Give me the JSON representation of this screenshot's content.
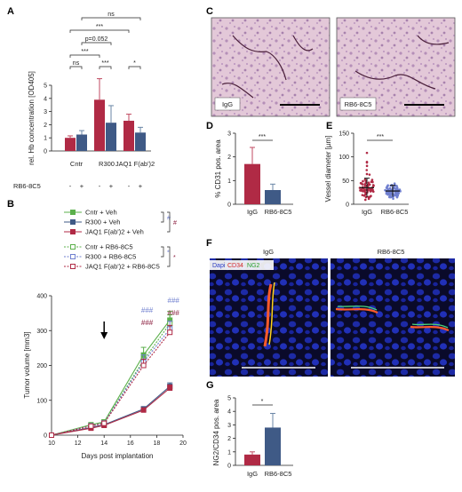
{
  "panel_labels": {
    "A": "A",
    "B": "B",
    "C": "C",
    "D": "D",
    "E": "E",
    "F": "F",
    "G": "G"
  },
  "colors": {
    "red": "#b02a45",
    "blue": "#3f5a86",
    "green": "#5bb04b",
    "blue_light": "#6f7fcf",
    "hash_red": "#8b1e3f",
    "err_red": "#c04a60",
    "err_blue": "#6a86a6"
  },
  "chart_data": [
    {
      "id": "A",
      "type": "bar",
      "ylabel": "rel. Hb concentration [OD405]",
      "ylim": [
        0,
        5
      ],
      "yticks": [
        0,
        1,
        2,
        3,
        4,
        5
      ],
      "groups": [
        "Cntr",
        "R300",
        "JAQ1 F(ab')2"
      ],
      "treatment_label": "RB6-8C5",
      "treatment_marks": [
        "-",
        "+",
        "-",
        "+",
        "-",
        "+"
      ],
      "series": [
        {
          "name": "",
          "color_key": "red",
          "values": [
            1.0,
            3.9,
            2.3
          ],
          "errors": [
            0.15,
            1.6,
            0.5
          ]
        },
        {
          "name": "",
          "color_key": "blue",
          "values": [
            1.25,
            2.15,
            1.4
          ],
          "errors": [
            0.3,
            1.3,
            0.4
          ]
        }
      ],
      "significance": [
        {
          "text": "ns",
          "pair": "Cntr -/+"
        },
        {
          "text": "***",
          "pair": "R300 -/+"
        },
        {
          "text": "*",
          "pair": "JAQ1 -/+"
        },
        {
          "text": "***",
          "pair": "Cntr - vs R300 -"
        },
        {
          "text": "p=0.052",
          "pair": "Cntr + vs R300 +"
        },
        {
          "text": "***",
          "pair": "Cntr - vs JAQ1 -"
        },
        {
          "text": "ns",
          "pair": "Cntr + vs JAQ1 +"
        }
      ]
    },
    {
      "id": "B",
      "type": "line",
      "xlabel": "Days post implantation",
      "ylabel": "Tumor volume [mm3]",
      "xlim": [
        10,
        20
      ],
      "ylim": [
        0,
        400
      ],
      "xticks": [
        10,
        12,
        14,
        16,
        18,
        20
      ],
      "yticks": [
        0,
        100,
        200,
        300,
        400
      ],
      "arrow_day": 14,
      "x": [
        10,
        13,
        14,
        17,
        19
      ],
      "series": [
        {
          "name": "Cntr + Veh",
          "color_key": "green",
          "dash": false,
          "values": [
            0,
            30,
            38,
            230,
            330
          ],
          "errors": [
            0,
            5,
            6,
            22,
            25
          ]
        },
        {
          "name": "R300 + Veh",
          "color_key": "blue",
          "dash": false,
          "values": [
            0,
            22,
            30,
            75,
            140
          ],
          "errors": [
            0,
            4,
            5,
            7,
            10
          ]
        },
        {
          "name": "JAQ1 F(ab')2 + Veh",
          "color_key": "red",
          "dash": false,
          "values": [
            0,
            20,
            28,
            72,
            135
          ],
          "errors": [
            0,
            4,
            5,
            6,
            9
          ]
        },
        {
          "name": "Cntr + RB6-8C5",
          "color_key": "green",
          "dash": true,
          "values": [
            0,
            28,
            36,
            215,
            320
          ],
          "errors": [
            0,
            5,
            6,
            20,
            25
          ]
        },
        {
          "name": "R300 + RB6-8C5",
          "color_key": "blue_light",
          "dash": true,
          "values": [
            0,
            27,
            35,
            210,
            305
          ],
          "errors": [
            0,
            5,
            6,
            20,
            22
          ]
        },
        {
          "name": "JAQ1 F(ab')2 + RB6-8C5",
          "color_key": "red",
          "dash": true,
          "values": [
            0,
            26,
            34,
            200,
            295
          ],
          "errors": [
            0,
            5,
            6,
            18,
            20
          ]
        }
      ],
      "legend_marks": [
        {
          "text": "#",
          "color_key": "blue_light"
        },
        {
          "text": "#",
          "color_key": "hash_red"
        },
        {
          "text": "*",
          "color_key": "blue_light"
        },
        {
          "text": "*",
          "color_key": "hash_red"
        }
      ],
      "annotations": [
        {
          "day": 17,
          "blue": "###",
          "red": "###"
        },
        {
          "day": 19,
          "blue": "###",
          "red": "###"
        }
      ]
    },
    {
      "id": "D",
      "type": "bar",
      "ylabel": "% CD31 pos. area",
      "ylim": [
        0,
        3
      ],
      "yticks": [
        0,
        1,
        2,
        3
      ],
      "categories": [
        "IgG",
        "RB6-8C5"
      ],
      "values": [
        1.7,
        0.6
      ],
      "errors": [
        0.7,
        0.25
      ],
      "significance": "***"
    },
    {
      "id": "E",
      "type": "scatter",
      "ylabel": "Vessel diameter [µm]",
      "ylim": [
        0,
        150
      ],
      "yticks": [
        0,
        50,
        100,
        150
      ],
      "categories": [
        "IgG",
        "RB6-8C5"
      ],
      "means": [
        35,
        28
      ],
      "sds": [
        20,
        12
      ],
      "significance": "***"
    },
    {
      "id": "G",
      "type": "bar",
      "ylabel": "NG2/CD34 pos. area",
      "ylim": [
        0,
        5
      ],
      "yticks": [
        0,
        1,
        2,
        3,
        4,
        5
      ],
      "categories": [
        "IgG",
        "RB6-8C5"
      ],
      "values": [
        0.8,
        2.8
      ],
      "errors": [
        0.2,
        1.05
      ],
      "significance": "*"
    }
  ],
  "panel_C": {
    "left_label": "IgG",
    "right_label": "RB6-8C5"
  },
  "panel_F": {
    "title_left": "IgG",
    "title_right": "RB6-8C5",
    "legend_dapi": "Dapi",
    "legend_cd34": "CD34",
    "legend_ng2": "NG2"
  }
}
